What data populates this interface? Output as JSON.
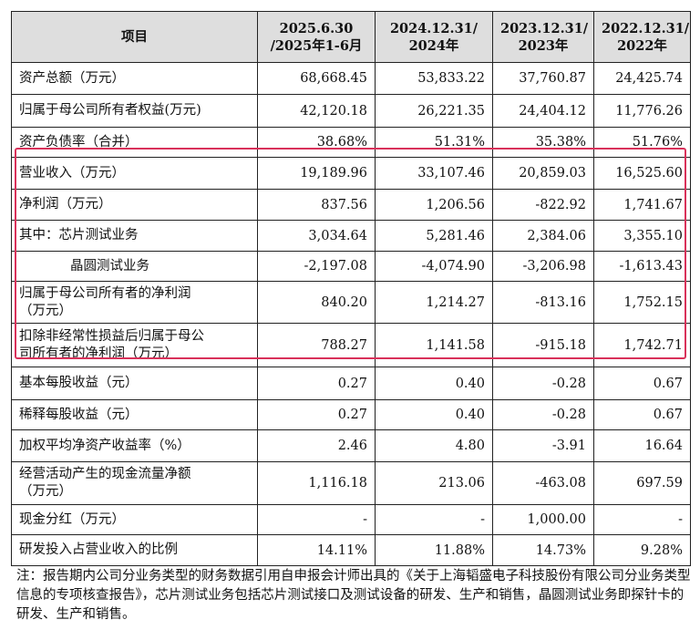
{
  "table": {
    "header": [
      "项目",
      "2025.6.30\n/2025年1-6月",
      "2024.12.31/\n2024年",
      "2023.12.31/\n2023年",
      "2022.12.31/\n2022年"
    ],
    "rows": [
      {
        "label": "资产总额（万元）",
        "values": [
          "68,668.45",
          "53,833.22",
          "37,760.87",
          "24,425.74"
        ]
      },
      {
        "label": "归属于母公司所有者权益(万元)",
        "values": [
          "42,120.18",
          "26,221.35",
          "24,404.12",
          "11,776.26"
        ]
      },
      {
        "label": "资产负债率（合并）",
        "values": [
          "38.68%",
          "51.31%",
          "35.38%",
          "51.76%"
        ]
      },
      {
        "label": "营业收入（万元）",
        "values": [
          "19,189.96",
          "33,107.46",
          "20,859.03",
          "16,525.60"
        ]
      },
      {
        "label": "净利润（万元）",
        "values": [
          "837.56",
          "1,206.56",
          "-822.92",
          "1,741.67"
        ]
      },
      {
        "label": "其中：芯片测试业务",
        "values": [
          "3,034.64",
          "5,281.46",
          "2,384.06",
          "3,355.10"
        ]
      },
      {
        "label": "晶圆测试业务",
        "values": [
          "-2,197.08",
          "-4,074.90",
          "-3,206.98",
          "-1,613.43"
        ]
      },
      {
        "label": "归属于母公司所有者的净利润\n（万元）",
        "values": [
          "840.20",
          "1,214.27",
          "-813.16",
          "1,752.15"
        ]
      },
      {
        "label": "扣除非经常性损益后归属于母公\n司所有者的净利润（万元）",
        "values": [
          "788.27",
          "1,141.58",
          "-915.18",
          "1,742.71"
        ]
      },
      {
        "label": "基本每股收益（元）",
        "values": [
          "0.27",
          "0.40",
          "-0.28",
          "0.67"
        ]
      },
      {
        "label": "稀释每股收益（元）",
        "values": [
          "0.27",
          "0.40",
          "-0.28",
          "0.67"
        ]
      },
      {
        "label": "加权平均净资产收益率（%）",
        "values": [
          "2.46",
          "4.80",
          "-3.91",
          "16.64"
        ]
      },
      {
        "label": "经营活动产生的现金流量净额\n（万元）",
        "values": [
          "1,116.18",
          "213.06",
          "-463.08",
          "697.59"
        ]
      },
      {
        "label": "现金分红（万元）",
        "values": [
          "-",
          "-",
          "1,000.00",
          "-"
        ]
      },
      {
        "label": "研发投入占营业收入的比例",
        "values": [
          "14.11%",
          "11.88%",
          "14.73%",
          "9.28%"
        ]
      }
    ]
  },
  "highlight": {
    "color": "#d9315a"
  },
  "note": "注：报告期内公司分业务类型的财务数据引用自申报会计师出具的《关于上海韬盛电子科技股份有限公司分业务类型信息的专项核查报告》，芯片测试业务包括芯片测试接口及测试设备的研发、生产和销售，晶圆测试业务即探针卡的研发、生产和销售。"
}
